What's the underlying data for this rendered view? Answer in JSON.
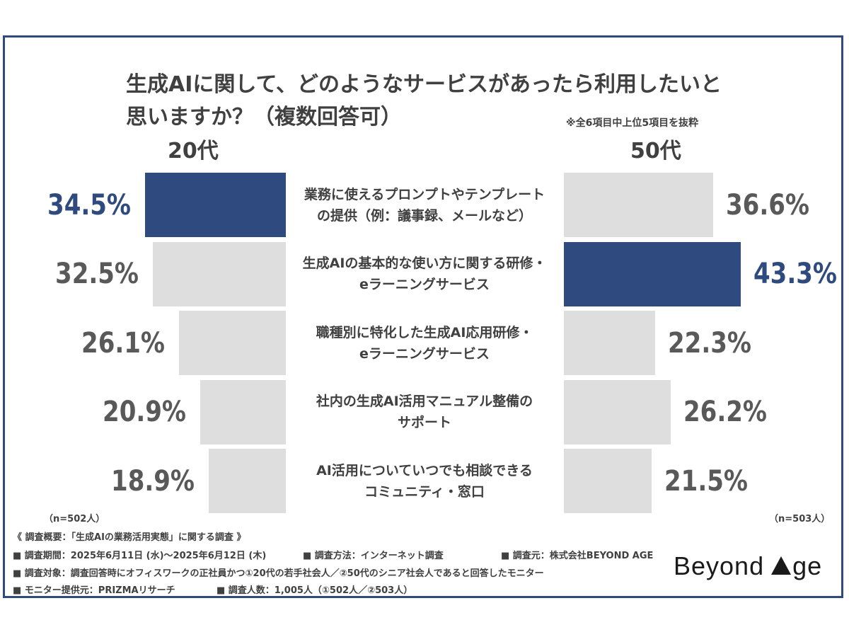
{
  "title_line1": "生成AIに関して、どのようなサービスがあったら利用したいと",
  "title_line2": "思いますか？（複数回答可）",
  "note": "※全6項目中上位5項目を抜粋",
  "colors": {
    "highlight": "#2e4a7e",
    "bar": "#dedede",
    "value_text": "#595959"
  },
  "chart_data": {
    "type": "bar",
    "orientation": "horizontal-butterfly",
    "categories": [
      [
        "業務に使えるプロンプトやテンプレート",
        "の提供（例：議事録、メールなど）"
      ],
      [
        "生成AIの基本的な使い方に関する研修・",
        "eラーニングサービス"
      ],
      [
        "職種別に特化した生成AI応用研修・",
        "eラーニングサービス"
      ],
      [
        "社内の生成AI活用マニュアル整備の",
        "サポート"
      ],
      [
        "AI活用についていつでも相談できる",
        "コミュニティ・窓口"
      ]
    ],
    "series": [
      {
        "name": "20代",
        "values": [
          34.5,
          32.5,
          26.1,
          20.9,
          18.9
        ],
        "labels": [
          "34.5%",
          "32.5%",
          "26.1%",
          "20.9%",
          "18.9%"
        ],
        "highlight_index": 0,
        "n_label": "（n=502人）"
      },
      {
        "name": "50代",
        "values": [
          36.6,
          43.3,
          22.3,
          26.2,
          21.5
        ],
        "labels": [
          "36.6%",
          "43.3%",
          "22.3%",
          "26.2%",
          "21.5%"
        ],
        "highlight_index": 1,
        "n_label": "（n=503人）"
      }
    ],
    "xlim": [
      0,
      43.3
    ]
  },
  "footer": {
    "heading": "《 調査概要：「生成AIの業務活用実態」に関する調査 》",
    "period": "■ 調査期間：2025年6月11日 (水)〜2025年6月12日 (木)",
    "method": "■ 調査方法：インターネット調査",
    "source": "■ 調査元：株式会社BEYOND AGE",
    "target": "■ 調査対象：調査回答時にオフィスワークの正社員かつ①20代の若手社会人／②50代のシニア社会人であると回答したモニター",
    "provider": "■ モニター提供元：PRIZMAリサーチ",
    "count": "■ 調査人数：1,005人（①502人／②503人）"
  },
  "logo": {
    "part1": "Beyond",
    "part2": "ge",
    "icon": "triangle-a-icon"
  }
}
